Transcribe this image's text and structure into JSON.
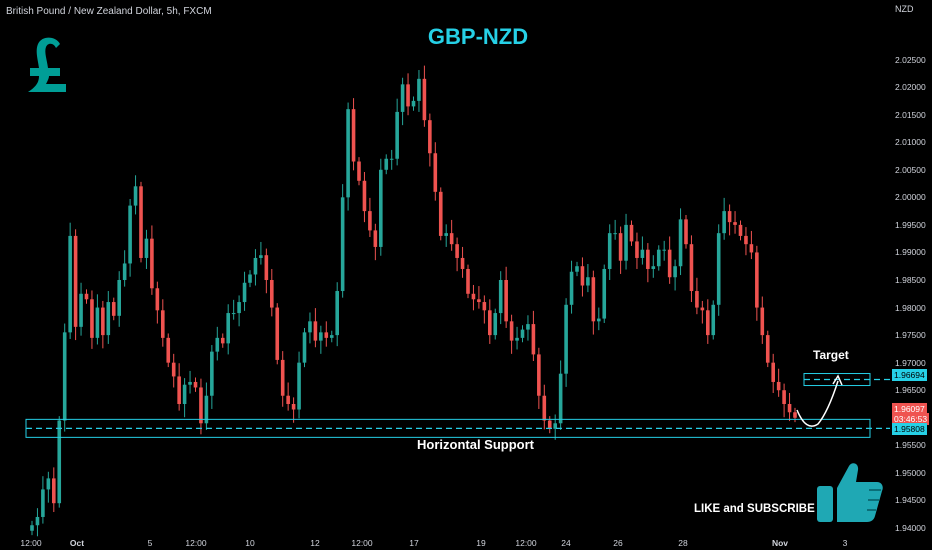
{
  "header": {
    "symbol_description": "British Pound / New Zealand Dollar, 5h, FXCM",
    "axis_currency": "NZD"
  },
  "colors": {
    "background": "#000000",
    "bull": "#26a69a",
    "bear": "#ef5350",
    "accent": "#26d0e6",
    "badge_text": "#000000"
  },
  "icons": {
    "pound": "pound-sign-icon",
    "thumb": "thumbs-up-icon"
  },
  "chart_data": {
    "type": "candlestick",
    "title": "GBP-NZD",
    "ylim": [
      1.94,
      2.03
    ],
    "y_ticks": [
      "2.02500",
      "2.02000",
      "2.01500",
      "2.01000",
      "2.00500",
      "2.00000",
      "1.99500",
      "1.99000",
      "1.98500",
      "1.98000",
      "1.97500",
      "1.97000",
      "1.96500",
      "1.95500",
      "1.95000",
      "1.94500",
      "1.94000"
    ],
    "x_ticks": [
      "12:00",
      "Oct",
      "5",
      "12:00",
      "10",
      "12",
      "12:00",
      "17",
      "19",
      "12:00",
      "24",
      "26",
      "28",
      "Nov",
      "3"
    ],
    "grid": false,
    "closes": [
      1.9405,
      1.942,
      1.947,
      1.949,
      1.9445,
      1.9595,
      1.9755,
      1.993,
      1.9765,
      1.9825,
      1.9815,
      1.9745,
      1.98,
      1.975,
      1.981,
      1.9785,
      1.985,
      1.988,
      1.9985,
      2.002,
      1.989,
      1.9925,
      1.9835,
      1.9795,
      1.9745,
      1.97,
      1.9675,
      1.9625,
      1.966,
      1.9665,
      1.9655,
      1.959,
      1.964,
      1.972,
      1.9745,
      1.9735,
      1.979,
      1.979,
      1.981,
      1.9845,
      1.986,
      1.989,
      1.9895,
      1.985,
      1.98,
      1.9705,
      1.964,
      1.9625,
      1.9615,
      1.97,
      1.9755,
      1.9775,
      1.974,
      1.9755,
      1.9745,
      1.975,
      1.983,
      2.0,
      2.016,
      2.0065,
      2.003,
      1.9975,
      1.994,
      1.991,
      2.005,
      2.007,
      2.007,
      2.0155,
      2.0205,
      2.0165,
      2.0175,
      2.0215,
      2.014,
      2.008,
      2.001,
      1.993,
      1.9935,
      1.9915,
      1.989,
      1.987,
      1.9825,
      1.9815,
      1.981,
      1.9795,
      1.975,
      1.979,
      1.985,
      1.9775,
      1.974,
      1.9745,
      1.976,
      1.977,
      1.9715,
      1.964,
      1.9595,
      1.958,
      1.959,
      1.968,
      1.9805,
      1.9865,
      1.9875,
      1.984,
      1.9855,
      1.9775,
      1.978,
      1.987,
      1.9935,
      1.9935,
      1.9885,
      1.995,
      1.992,
      1.989,
      1.9905,
      1.987,
      1.9875,
      1.9905,
      1.9905,
      1.9855,
      1.9875,
      1.996,
      1.9915,
      1.983,
      1.98,
      1.9795,
      1.975,
      1.9805,
      1.9935,
      1.9975,
      1.9955,
      1.995,
      1.993,
      1.9915,
      1.99,
      1.98,
      1.975,
      1.97,
      1.9665,
      1.965,
      1.9625,
      1.961,
      1.96
    ],
    "last_price": "1.96097",
    "countdown": "03:46:53"
  },
  "annotations": {
    "target_label": "Target",
    "target_price": "1.96694",
    "target_value": 1.96694,
    "support_label": "Horizontal Support",
    "support_price": "1.95808",
    "support_value": 1.95808,
    "cta": "LIKE and SUBSCRIBE"
  }
}
